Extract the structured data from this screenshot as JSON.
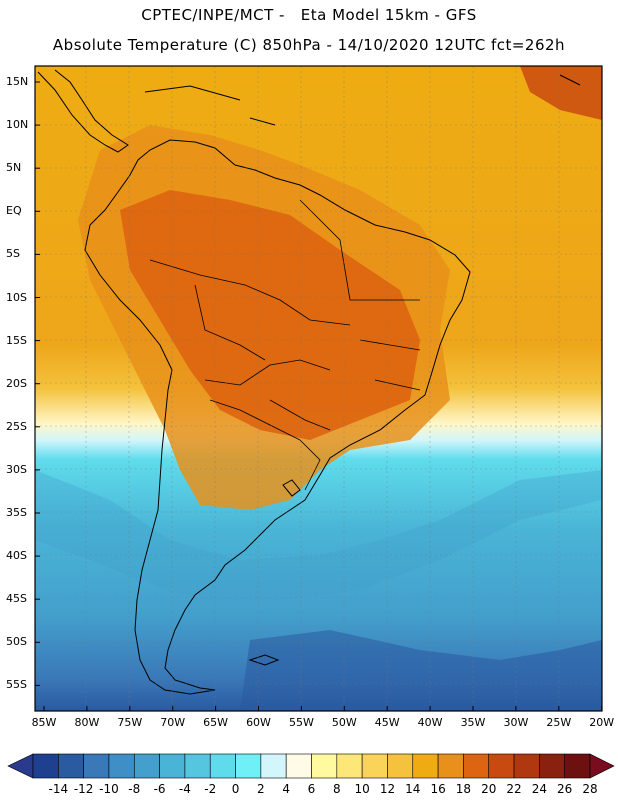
{
  "header": {
    "line1": "CPTEC/INPE/MCT -   Eta Model 15km - GFS",
    "line2": "Absolute Temperature (C) 850hPa - 14/10/2020 12UTC fct=262h"
  },
  "map": {
    "lat_labels": [
      "15N",
      "10N",
      "5N",
      "EQ",
      "5S",
      "10S",
      "15S",
      "20S",
      "25S",
      "30S",
      "35S",
      "40S",
      "45S",
      "50S",
      "55S"
    ],
    "lon_labels": [
      "85W",
      "80W",
      "75W",
      "70W",
      "65W",
      "60W",
      "55W",
      "50W",
      "45W",
      "40W",
      "35W",
      "30W",
      "25W",
      "20W"
    ]
  },
  "colorbar": {
    "labels": [
      "-14",
      "-12",
      "-10",
      "-8",
      "-6",
      "-4",
      "-2",
      "0",
      "2",
      "4",
      "6",
      "8",
      "10",
      "12",
      "14",
      "16",
      "18",
      "20",
      "22",
      "24",
      "26",
      "28"
    ],
    "colors": [
      "#1f3f8f",
      "#2a5aa0",
      "#3a78b8",
      "#3f8ec5",
      "#43a0cc",
      "#4ab4d6",
      "#54c6df",
      "#5fdcec",
      "#6ff0f6",
      "#d2f6fb",
      "#fffbe6",
      "#fff9a0",
      "#fde778",
      "#f9d458",
      "#f4c23c",
      "#eeac12",
      "#e8901a",
      "#dd6410",
      "#c94a10",
      "#b03810",
      "#8a2010",
      "#6c1010"
    ],
    "under_color": "#2a3a8c",
    "over_color": "#7a0c20"
  }
}
